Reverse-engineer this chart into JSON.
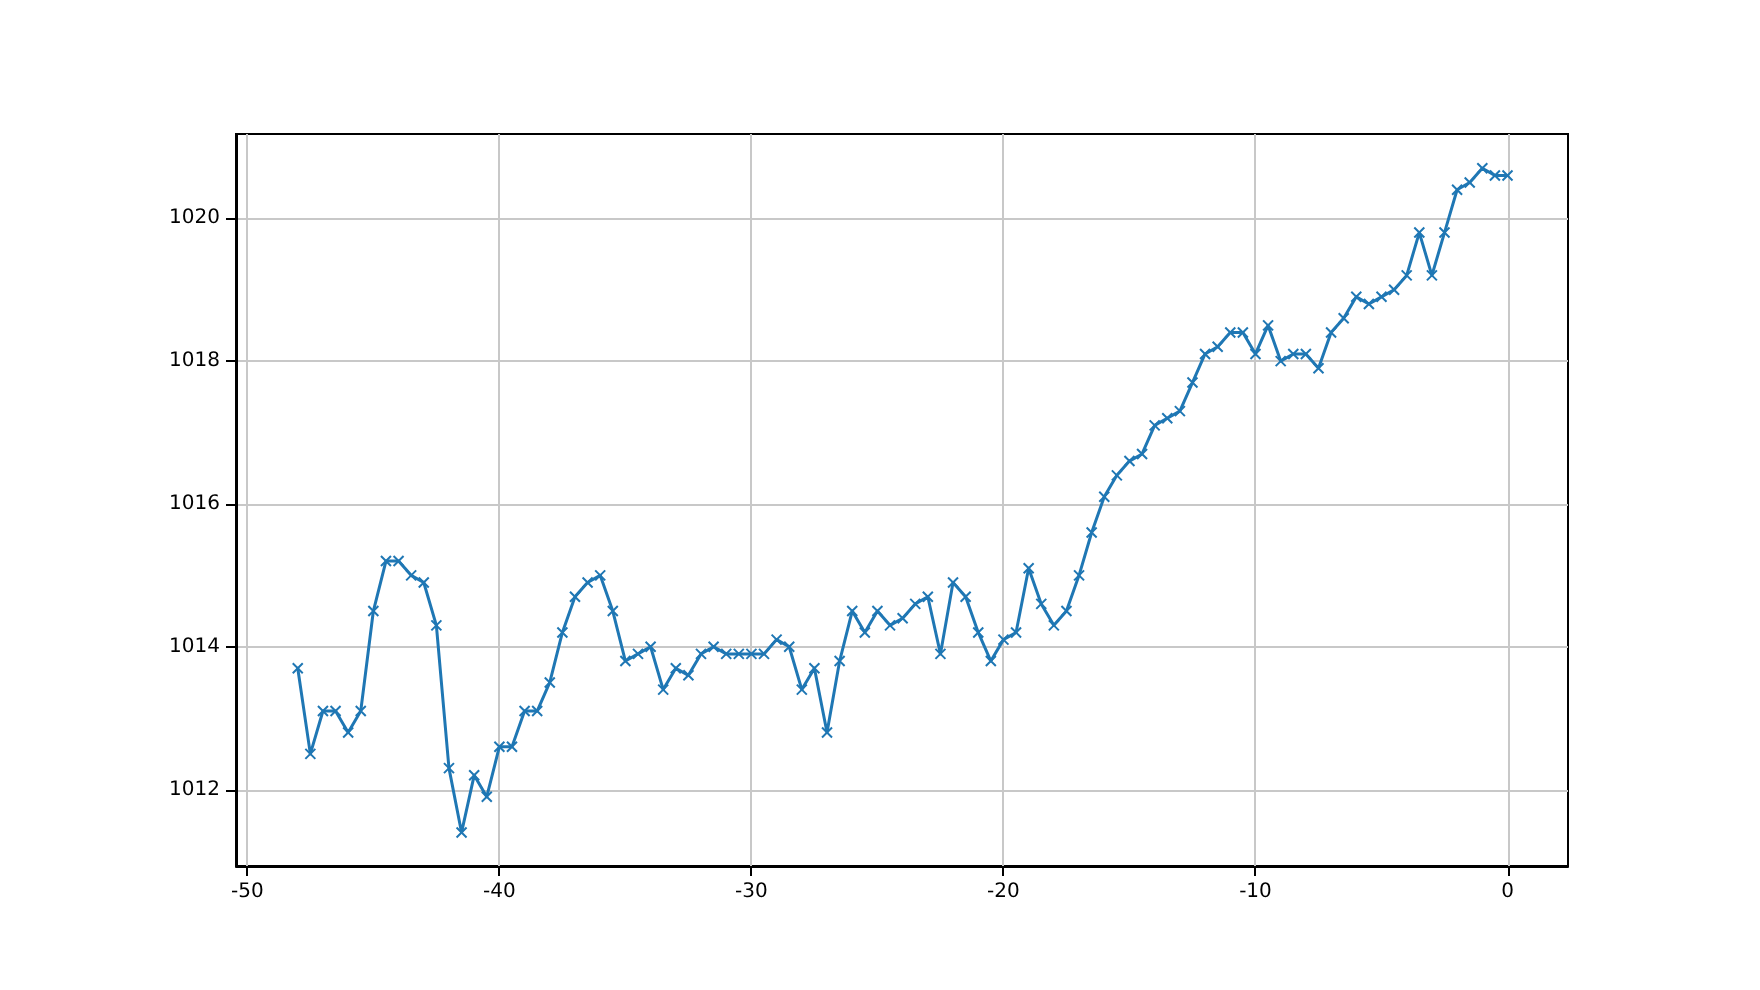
{
  "chart_data": {
    "type": "line",
    "x": [
      -48,
      -47.5,
      -47,
      -46.5,
      -46,
      -45.5,
      -45,
      -44.5,
      -44,
      -43.5,
      -43,
      -42.5,
      -42,
      -41.5,
      -41,
      -40.5,
      -40,
      -39.5,
      -39,
      -38.5,
      -38,
      -37.5,
      -37,
      -36.5,
      -36,
      -35.5,
      -35,
      -34.5,
      -34,
      -33.5,
      -33,
      -32.5,
      -32,
      -31.5,
      -31,
      -30.5,
      -30,
      -29.5,
      -29,
      -28.5,
      -28,
      -27.5,
      -27,
      -26.5,
      -26,
      -25.5,
      -25,
      -24.5,
      -24,
      -23.5,
      -23,
      -22.5,
      -22,
      -21.5,
      -21,
      -20.5,
      -20,
      -19.5,
      -19,
      -18.5,
      -18,
      -17.5,
      -17,
      -16.5,
      -16,
      -15.5,
      -15,
      -14.5,
      -14,
      -13.5,
      -13,
      -12.5,
      -12,
      -11.5,
      -11,
      -10.5,
      -10,
      -9.5,
      -9,
      -8.5,
      -8,
      -7.5,
      -7,
      -6.5,
      -6,
      -5.5,
      -5,
      -4.5,
      -4,
      -3.5,
      -3,
      -2.5,
      -2,
      -1.5,
      -1,
      -0.5,
      0
    ],
    "series": [
      {
        "color": "#1f77b4",
        "values": [
          1013.7,
          1012.5,
          1013.1,
          1013.1,
          1012.8,
          1013.1,
          1014.5,
          1015.2,
          1015.2,
          1015.0,
          1014.9,
          1014.3,
          1012.3,
          1011.4,
          1012.2,
          1011.9,
          1012.6,
          1012.6,
          1013.1,
          1013.1,
          1013.5,
          1014.2,
          1014.7,
          1014.9,
          1015.0,
          1014.5,
          1013.8,
          1013.9,
          1014.0,
          1013.4,
          1013.7,
          1013.6,
          1013.9,
          1014.0,
          1013.9,
          1013.9,
          1013.9,
          1013.9,
          1014.1,
          1014.0,
          1013.4,
          1013.7,
          1012.8,
          1013.8,
          1014.5,
          1014.2,
          1014.5,
          1014.3,
          1014.4,
          1014.6,
          1014.7,
          1013.9,
          1014.9,
          1014.7,
          1014.2,
          1013.8,
          1014.1,
          1014.2,
          1015.1,
          1014.6,
          1014.3,
          1014.5,
          1015.0,
          1015.6,
          1016.1,
          1016.4,
          1016.6,
          1016.7,
          1017.1,
          1017.2,
          1017.3,
          1017.7,
          1018.1,
          1018.2,
          1018.4,
          1018.4,
          1018.1,
          1018.5,
          1018.0,
          1018.1,
          1018.1,
          1017.9,
          1018.4,
          1018.6,
          1018.9,
          1018.8,
          1018.9,
          1019.0,
          1019.2,
          1019.8,
          1019.2,
          1019.8,
          1020.4,
          1020.5,
          1020.7,
          1020.6,
          1020.6
        ]
      }
    ],
    "xlim": [
      -50.45,
      2.4
    ],
    "ylim": [
      1010.93,
      1021.18
    ],
    "xticks": [
      -50,
      -40,
      -30,
      -20,
      -10,
      0
    ],
    "yticks": [
      1012,
      1014,
      1016,
      1018,
      1020
    ],
    "grid": true,
    "marker": "cross",
    "line_style": "solid"
  }
}
